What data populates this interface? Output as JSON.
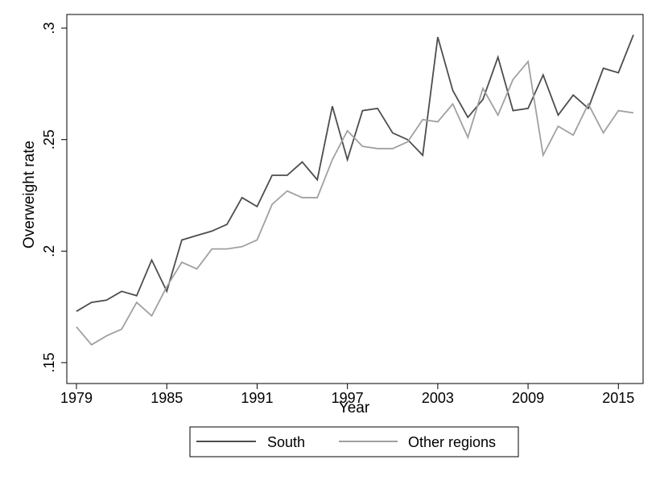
{
  "chart_data": {
    "type": "line",
    "xlabel": "Year",
    "ylabel": "Overweight rate",
    "xlim": [
      1979,
      2016
    ],
    "ylim": [
      0.15,
      0.3
    ],
    "xticks": [
      1979,
      1985,
      1991,
      1997,
      2003,
      2009,
      2015
    ],
    "xtick_labels": [
      "1979",
      "1985",
      "1991",
      "1997",
      "2003",
      "2009",
      "2015"
    ],
    "yticks": [
      0.15,
      0.2,
      0.25,
      0.3
    ],
    "ytick_labels": [
      ".15",
      ".2",
      ".25",
      ".3"
    ],
    "x": [
      1979,
      1980,
      1981,
      1982,
      1983,
      1984,
      1985,
      1986,
      1987,
      1988,
      1989,
      1990,
      1991,
      1992,
      1993,
      1994,
      1995,
      1996,
      1997,
      1998,
      1999,
      2000,
      2001,
      2002,
      2003,
      2004,
      2005,
      2006,
      2007,
      2008,
      2009,
      2010,
      2011,
      2012,
      2013,
      2014,
      2015,
      2016
    ],
    "series": [
      {
        "name": "South",
        "color": "#4d4d4d",
        "values": [
          0.173,
          0.177,
          0.178,
          0.182,
          0.18,
          0.196,
          0.182,
          0.205,
          0.207,
          0.209,
          0.212,
          0.224,
          0.22,
          0.234,
          0.234,
          0.24,
          0.232,
          0.265,
          0.241,
          0.263,
          0.264,
          0.253,
          0.25,
          0.243,
          0.296,
          0.272,
          0.26,
          0.268,
          0.287,
          0.263,
          0.264,
          0.279,
          0.261,
          0.27,
          0.264,
          0.282,
          0.28,
          0.297
        ]
      },
      {
        "name": "Other regions",
        "color": "#a0a0a0",
        "values": [
          0.166,
          0.158,
          0.162,
          0.165,
          0.177,
          0.171,
          0.184,
          0.195,
          0.192,
          0.201,
          0.201,
          0.202,
          0.205,
          0.221,
          0.227,
          0.224,
          0.224,
          0.241,
          0.254,
          0.247,
          0.246,
          0.246,
          0.249,
          0.259,
          0.258,
          0.266,
          0.251,
          0.273,
          0.261,
          0.277,
          0.285,
          0.243,
          0.256,
          0.252,
          0.266,
          0.253,
          0.263,
          0.262
        ]
      }
    ],
    "grid": false,
    "legend_position": "bottom"
  }
}
